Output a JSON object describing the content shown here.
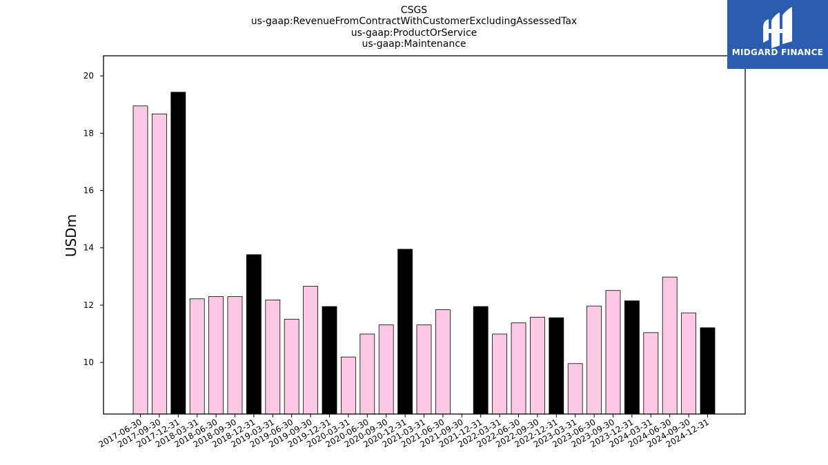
{
  "titles": [
    "CSGS",
    "us-gaap:RevenueFromContractWithCustomerExcludingAssessedTax",
    "us-gaap:ProductOrService",
    "us-gaap:Maintenance"
  ],
  "logo": {
    "text": "MIDGARD FINANCE",
    "background": "#2a5cb0"
  },
  "chart_data": {
    "type": "bar",
    "ylabel": "USDm",
    "xlabel": "",
    "ylim": [
      8.2,
      20.7
    ],
    "yticks": [
      10,
      12,
      14,
      16,
      18,
      20
    ],
    "colors": {
      "quarter": "#fcc9e4",
      "year_end": "#000000",
      "edge": "#000000"
    },
    "categories": [
      "2017-06-30",
      "2017-09-30",
      "2017-12-31",
      "2018-03-31",
      "2018-06-30",
      "2018-09-30",
      "2018-12-31",
      "2019-03-31",
      "2019-06-30",
      "2019-09-30",
      "2019-12-31",
      "2020-03-31",
      "2020-06-30",
      "2020-09-30",
      "2020-12-31",
      "2021-03-31",
      "2021-06-30",
      "2021-09-30",
      "2021-12-31",
      "2022-03-31",
      "2022-06-30",
      "2022-09-30",
      "2022-12-31",
      "2023-03-31",
      "2023-06-30",
      "2023-09-30",
      "2023-12-31",
      "2024-03-31",
      "2024-06-30",
      "2024-09-30",
      "2024-12-31"
    ],
    "values": [
      18.95,
      18.67,
      19.43,
      12.22,
      12.3,
      12.3,
      13.76,
      12.18,
      11.51,
      12.66,
      11.95,
      10.19,
      10.99,
      11.31,
      13.95,
      11.31,
      11.84,
      null,
      11.95,
      10.99,
      11.38,
      11.58,
      11.56,
      9.96,
      11.97,
      12.51,
      12.15,
      11.04,
      12.98,
      11.73,
      11.21
    ]
  }
}
